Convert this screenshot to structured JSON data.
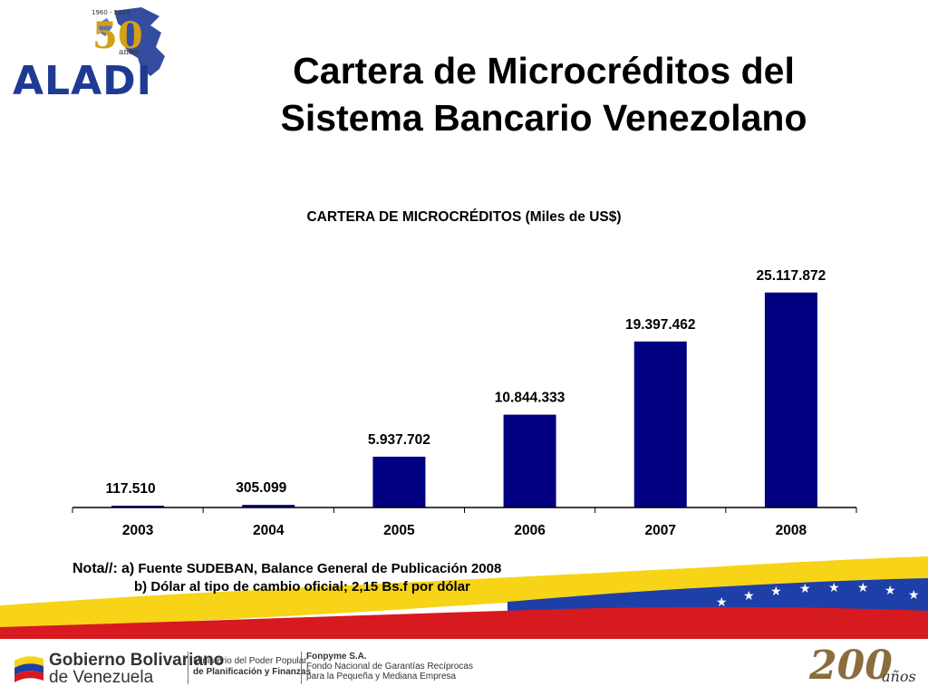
{
  "logo": {
    "text": "ALADI",
    "years": "1960 - 2010",
    "fifty": "50",
    "anos": "años"
  },
  "title": {
    "line1": "Cartera de Microcréditos del",
    "line2": "Sistema Bancario Venezolano"
  },
  "colors": {
    "bar": "#000080",
    "title": "#000000",
    "flag_yellow": "#FFD700",
    "flag_blue": "#1E40AF",
    "flag_red": "#D71920"
  },
  "chart_data": {
    "type": "bar",
    "title": "CARTERA DE MICROCRÉDITOS (Miles de US$)",
    "categories": [
      "2003",
      "2004",
      "2005",
      "2006",
      "2007",
      "2008"
    ],
    "values": [
      117510,
      305099,
      5937702,
      10844333,
      19397462,
      25117872
    ],
    "data_labels": [
      "117.510",
      "305.099",
      "5.937.702",
      "10.844.333",
      "19.397.462",
      "25.117.872"
    ],
    "ylim": [
      0,
      27000000
    ],
    "grid": false,
    "legend": "none"
  },
  "note": {
    "label": "Nota//:",
    "a_letter": "a)",
    "a_text": "Fuente SUDEBAN, Balance General de Publicación 2008",
    "b_text": "b) Dólar al tipo de cambio oficial; 2,15 Bs.f por dólar"
  },
  "footer": {
    "gov_line1_bold": "Gobierno Bolivariano",
    "gov_line2": "de Venezuela",
    "ministry_line1": "Ministerio del Poder Popular",
    "ministry_line2": "de Planificación y Finanzas",
    "fonpyme_line1": "Fonpyme S.A.",
    "fonpyme_line2": "Fondo Nacional de Garantías Recíprocas",
    "fonpyme_line3": "para la Pequeña y Mediana Empresa",
    "bicentenario_number": "200",
    "bicentenario_anos": "años"
  }
}
